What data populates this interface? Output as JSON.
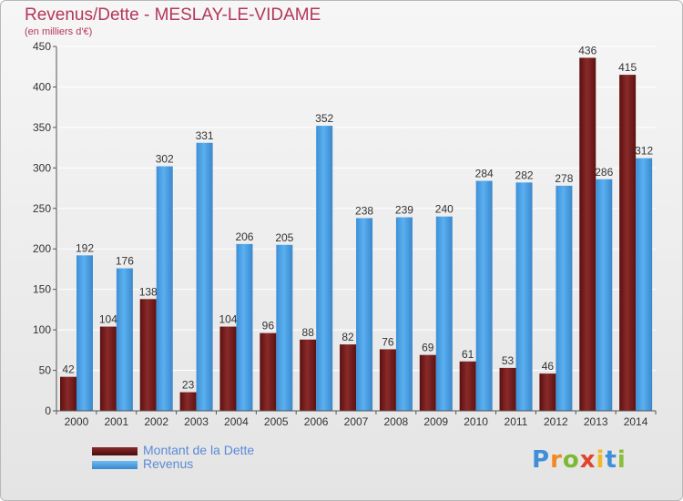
{
  "title": "Revenus/Dette - MESLAY-LE-VIDAME",
  "subtitle": "(en milliers d'€)",
  "legend": {
    "debt_label": "Montant de la Dette",
    "revenue_label": "Revenus"
  },
  "logo": {
    "letters": [
      "P",
      "r",
      "o",
      "x",
      "i",
      "t",
      "i"
    ],
    "colors": [
      "#3f8fd8",
      "#f08a20",
      "#7cb832",
      "#e0452b",
      "#f0b92a",
      "#3f8fd8",
      "#8bbd3a"
    ]
  },
  "colors": {
    "debt": "#7a1e1e",
    "revenue": "#4aa3e8",
    "title": "#b5365a"
  },
  "chart_data": {
    "type": "bar",
    "categories": [
      "2000",
      "2001",
      "2002",
      "2003",
      "2004",
      "2005",
      "2006",
      "2007",
      "2008",
      "2009",
      "2010",
      "2011",
      "2012",
      "2013",
      "2014"
    ],
    "series": [
      {
        "name": "Montant de la Dette",
        "values": [
          42,
          104,
          138,
          23,
          104,
          96,
          88,
          82,
          76,
          69,
          61,
          53,
          46,
          436,
          415
        ]
      },
      {
        "name": "Revenus",
        "values": [
          192,
          176,
          302,
          331,
          206,
          205,
          352,
          238,
          239,
          240,
          284,
          282,
          278,
          286,
          312
        ]
      }
    ],
    "yticks": [
      0,
      50,
      100,
      150,
      200,
      250,
      300,
      350,
      400,
      450
    ],
    "ylim": [
      0,
      450
    ],
    "grid": true
  }
}
